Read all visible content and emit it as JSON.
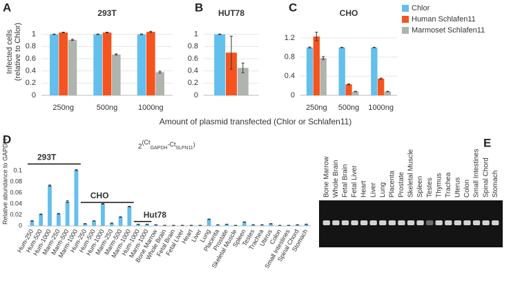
{
  "chart_data": [
    {
      "type": "bar",
      "panel": "A",
      "title": "293T",
      "ylabel": [
        "Infected cells",
        "(relative to Chlor)"
      ],
      "categories": [
        "250ng",
        "500ng",
        "1000ng"
      ],
      "series": [
        {
          "name": "Chlor",
          "color": "#63bfec",
          "values": [
            1,
            1,
            1
          ],
          "errors": [
            0.005,
            0.005,
            0.005
          ]
        },
        {
          "name": "Human Schlafen11",
          "color": "#f5541e",
          "values": [
            1.03,
            1.03,
            1.04
          ],
          "errors": [
            0.005,
            0.005,
            0.01
          ]
        },
        {
          "name": "Marmoset Schlafen11",
          "color": "#b0b4ae",
          "values": [
            0.91,
            0.67,
            0.38
          ],
          "errors": [
            0.01,
            0.01,
            0.015
          ]
        }
      ],
      "ylim": [
        0,
        1.2
      ],
      "yticks": [
        0,
        0.2,
        0.4,
        0.6,
        0.8,
        1
      ],
      "grid": true
    },
    {
      "type": "bar",
      "panel": "B",
      "title": "HUT78",
      "categories": [
        null
      ],
      "series": [
        {
          "name": "Chlor",
          "color": "#63bfec",
          "values": [
            1
          ],
          "errors": [
            0.005
          ]
        },
        {
          "name": "Human Schlafen11",
          "color": "#f5541e",
          "values": [
            0.7
          ],
          "errors": [
            0.27
          ]
        },
        {
          "name": "Marmoset Schlafen11",
          "color": "#b0b4ae",
          "values": [
            0.45
          ],
          "errors": [
            0.08
          ]
        }
      ],
      "ylim": [
        0,
        1.2
      ],
      "yticks": [
        0,
        0.2,
        0.4,
        0.6,
        0.8,
        1
      ],
      "grid": true
    },
    {
      "type": "bar",
      "panel": "C",
      "title": "CHO",
      "categories": [
        "250ng",
        "500ng",
        "1000ng"
      ],
      "series": [
        {
          "name": "Chlor",
          "color": "#63bfec",
          "values": [
            1,
            1,
            1
          ],
          "errors": [
            0.01,
            0.005,
            0.005
          ]
        },
        {
          "name": "Human Schlafen11",
          "color": "#f5541e",
          "values": [
            1.23,
            0.23,
            0.35
          ],
          "errors": [
            0.09,
            0.01,
            0.01
          ]
        },
        {
          "name": "Marmoset Schlafen11",
          "color": "#b0b4ae",
          "values": [
            0.78,
            0.08,
            0.08
          ],
          "errors": [
            0.03,
            0.005,
            0.005
          ]
        }
      ],
      "ylim": [
        0,
        1.4
      ],
      "yticks": [
        0,
        0.4,
        0.8,
        1.2
      ],
      "grid": true,
      "legend": "right",
      "xlabel": "Amount of plasmid transfected (Chlor or Schlafen11)"
    },
    {
      "type": "bar",
      "panel": "D",
      "title_parts": [
        "2",
        "(Ct",
        "GAPDH",
        "-Ct",
        "SLFN11",
        ")"
      ],
      "ylabel": "Relative abundance to GAPDH",
      "categories": [
        "Hum-250",
        "Hum-500",
        "Hum-1000",
        "Marm-250",
        "Marm-500",
        "Marm-1000",
        "Hum-250",
        "Hum-500",
        "Hum-1000",
        "Marm-250",
        "Marm-500",
        "Marm-1000",
        "Hum-1000",
        "Marm-1000",
        "Bone Marrow",
        "Whole Brain",
        "Fetal Brain",
        "Fetal Liver",
        "Heart",
        "Liver",
        "Lung",
        "Placenta",
        "Prostate",
        "Skeletal Muscle",
        "Spleen",
        "Testes",
        "Trachea",
        "Uterus",
        "Colon",
        "Small Intestines",
        "Spinal Chord",
        "Stomach"
      ],
      "series": [
        {
          "color": "#63bfec",
          "values": [
            0.009,
            0.021,
            0.073,
            0.022,
            0.044,
            0.101,
            0.004,
            0.009,
            0.04,
            0.005,
            0.016,
            0.035,
            0.003,
            0.003,
            0.002,
            0.001,
            0.001,
            0.001,
            0.001,
            0.001,
            0.012,
            0.002,
            0.003,
            0.001,
            0.007,
            0.002,
            0.002,
            0.004,
            0.001,
            0.001,
            0.002,
            0.003
          ],
          "errors": [
            0.0005,
            0.0005,
            0.001,
            0.0005,
            0.0015,
            0.001,
            0.0003,
            0.0003,
            0.0005,
            0.0003,
            0.0005,
            0.0005,
            0.0002,
            0.0002,
            0.0002,
            0.0001,
            0.0001,
            0.0001,
            0.0001,
            0.0001,
            0.0005,
            0.0002,
            0.0002,
            0.0001,
            0.0004,
            0.0002,
            0.0002,
            0.0003,
            0.0001,
            0.0001,
            0.0002,
            0.0003
          ]
        }
      ],
      "annotations": [
        "293T",
        "CHO",
        "Hut78"
      ],
      "ylim": [
        0,
        0.11
      ],
      "yticks": [
        0,
        0.02,
        0.04,
        0.06,
        0.08,
        0.1
      ],
      "grid": false
    }
  ],
  "gel": {
    "panel": "E",
    "lanes": [
      "Bone Marrow",
      "Whole Brain",
      "Fetal Brain",
      "Fetal Liver",
      "Heart",
      "Liver",
      "Lung",
      "Placenta",
      "Prostate",
      "Skeletal Muscle",
      "Spleen",
      "Testes",
      "Thymus",
      "Trachea",
      "Uterus",
      "Colon",
      "Small Intestines",
      "Spinal Chord",
      "Stomach"
    ]
  }
}
